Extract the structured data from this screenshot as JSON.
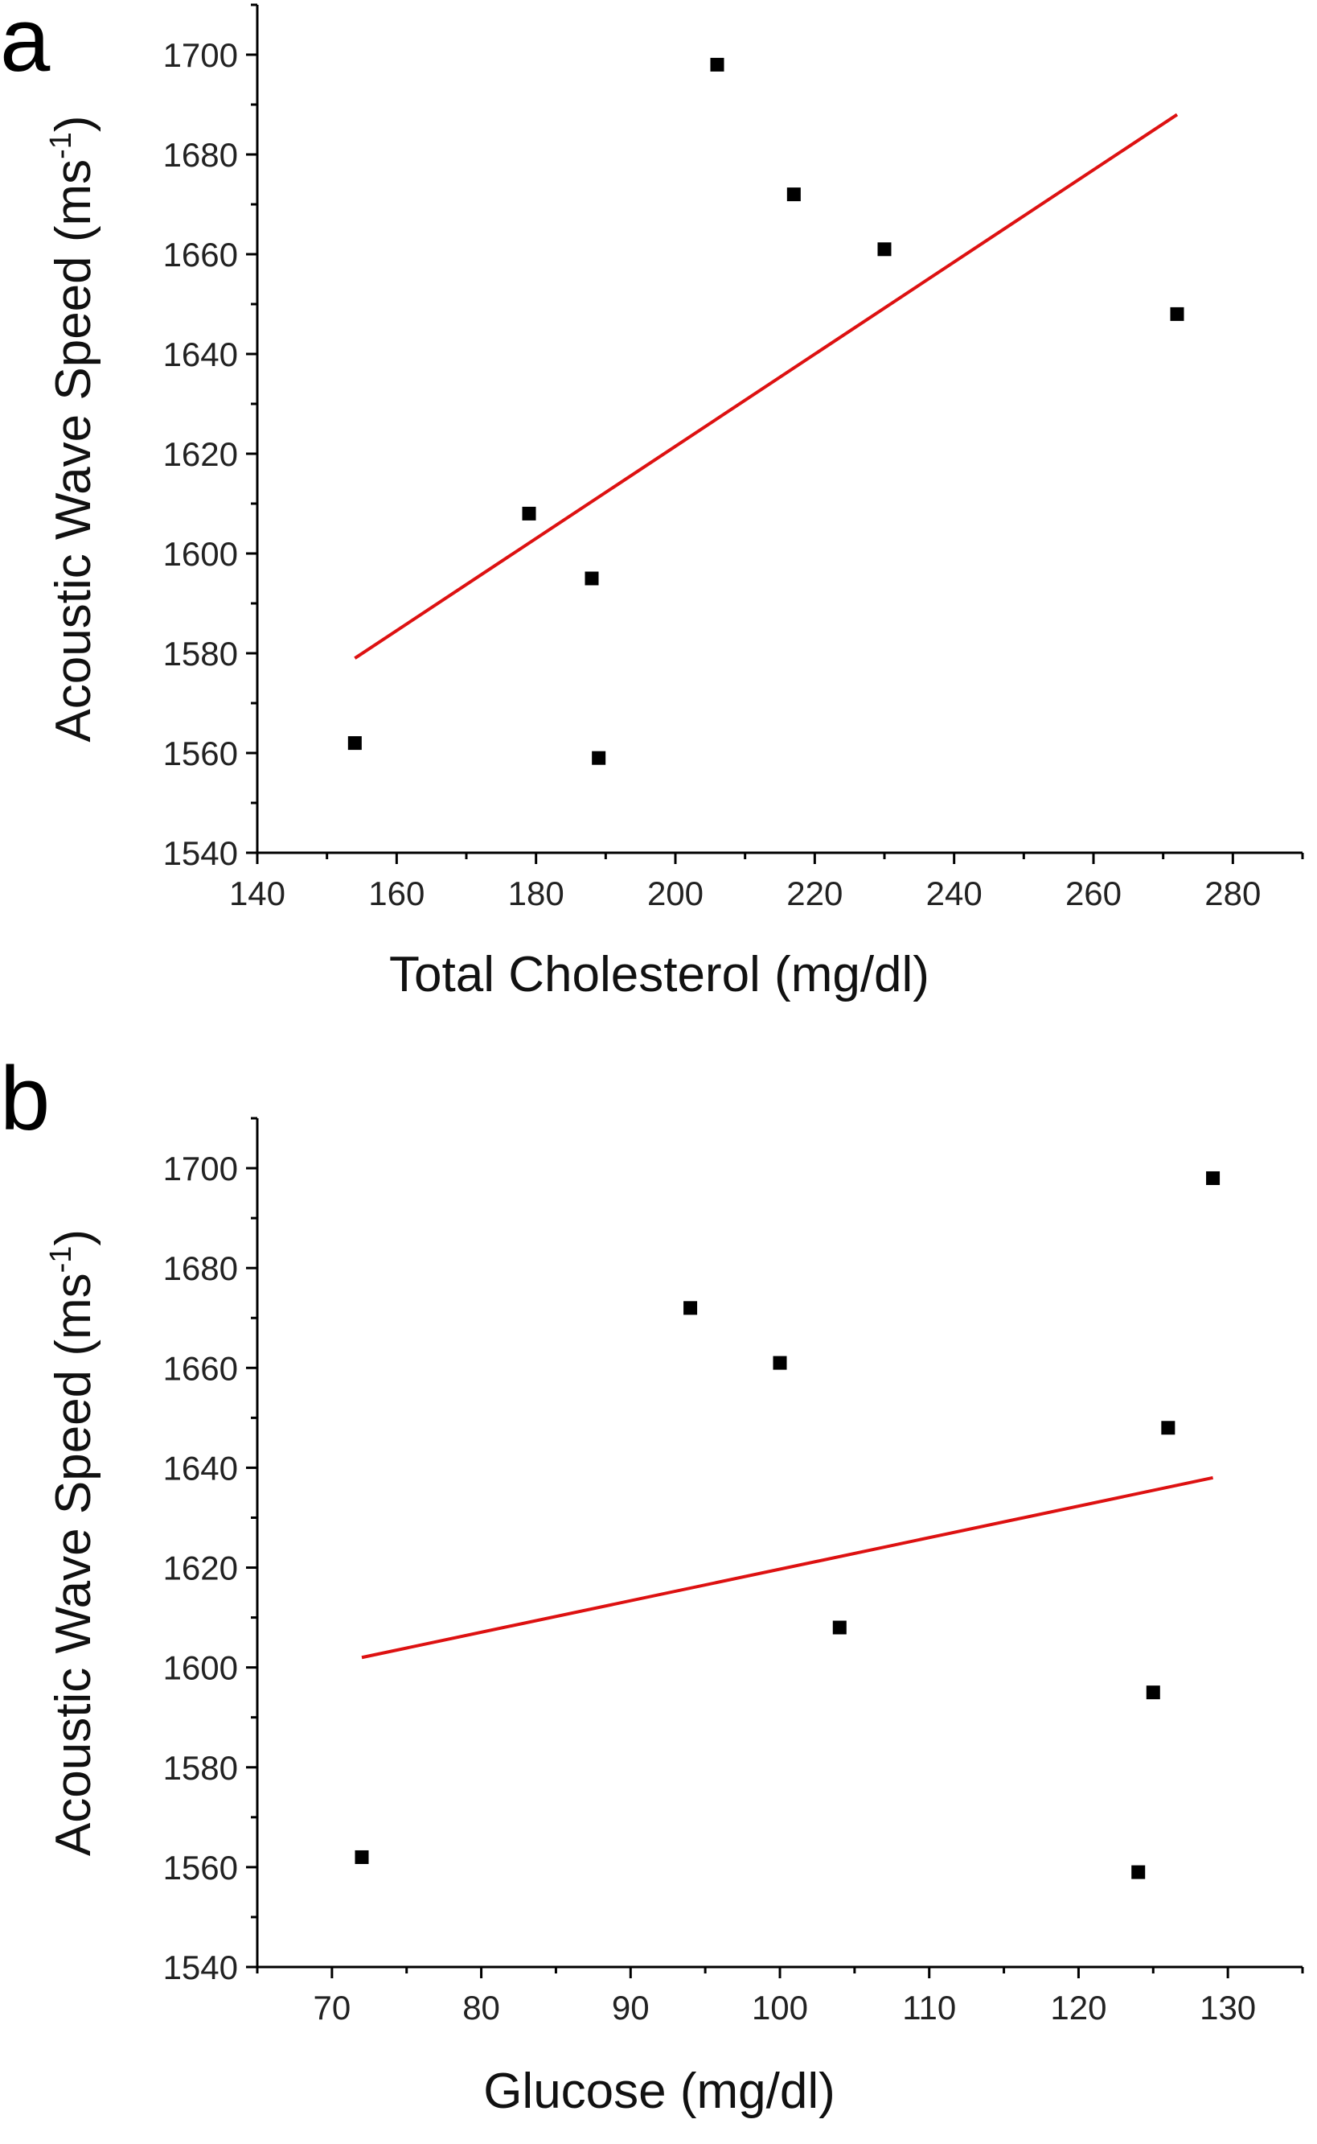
{
  "chart_data": [
    {
      "type": "scatter",
      "panel_label": "a",
      "xlabel": "Total Cholesterol (mg/dl)",
      "ylabel_main": "Acoustic Wave Speed (ms",
      "ylabel_sup": "-1",
      "ylabel_close": ")",
      "xlim": [
        140,
        290
      ],
      "ylim": [
        1540,
        1710
      ],
      "xticks": [
        140,
        160,
        180,
        200,
        220,
        240,
        260,
        280
      ],
      "yticks": [
        1540,
        1560,
        1580,
        1600,
        1620,
        1640,
        1660,
        1680,
        1700
      ],
      "grid": false,
      "points": [
        {
          "x": 154,
          "y": 1562
        },
        {
          "x": 179,
          "y": 1608
        },
        {
          "x": 188,
          "y": 1595
        },
        {
          "x": 189,
          "y": 1559
        },
        {
          "x": 206,
          "y": 1698
        },
        {
          "x": 217,
          "y": 1672
        },
        {
          "x": 230,
          "y": 1661
        },
        {
          "x": 272,
          "y": 1648
        }
      ],
      "fit_line": {
        "x": [
          154,
          272
        ],
        "y": [
          1579,
          1688
        ],
        "color": "#dd1111"
      },
      "marker_color": "#000000"
    },
    {
      "type": "scatter",
      "panel_label": "b",
      "xlabel": "Glucose (mg/dl)",
      "ylabel_main": "Acoustic Wave Speed (ms",
      "ylabel_sup": "-1",
      "ylabel_close": ")",
      "xlim": [
        65,
        135
      ],
      "ylim": [
        1540,
        1710
      ],
      "xticks": [
        70,
        80,
        90,
        100,
        110,
        120,
        130
      ],
      "yticks": [
        1540,
        1560,
        1580,
        1600,
        1620,
        1640,
        1660,
        1680,
        1700
      ],
      "grid": false,
      "points": [
        {
          "x": 72,
          "y": 1562
        },
        {
          "x": 94,
          "y": 1672
        },
        {
          "x": 100,
          "y": 1661
        },
        {
          "x": 104,
          "y": 1608
        },
        {
          "x": 124,
          "y": 1559
        },
        {
          "x": 125,
          "y": 1595
        },
        {
          "x": 126,
          "y": 1648
        },
        {
          "x": 129,
          "y": 1698
        }
      ],
      "fit_line": {
        "x": [
          72,
          129
        ],
        "y": [
          1602,
          1638
        ],
        "color": "#dd1111"
      },
      "marker_color": "#000000"
    }
  ]
}
